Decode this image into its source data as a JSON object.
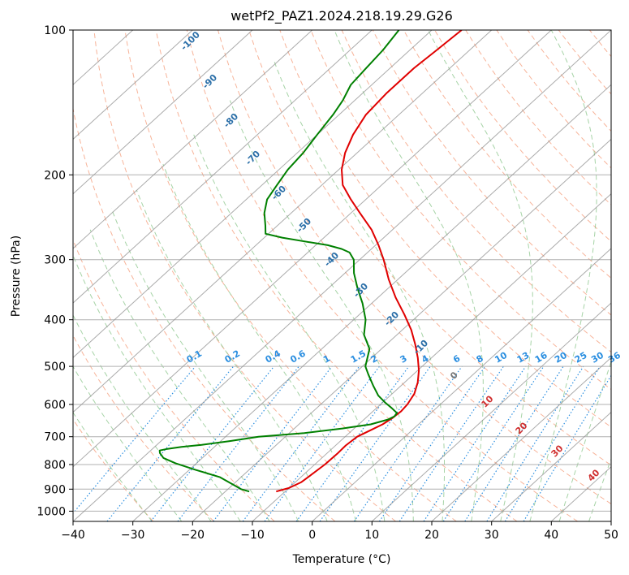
{
  "chart_data": {
    "type": "line",
    "subtype": "skew-t log-p diagram",
    "title": "wetPf2_PAZ1.2024.218.19.29.G26",
    "xlabel": "Temperature (°C)",
    "ylabel": "Pressure (hPa)",
    "xlim": [
      -40,
      50
    ],
    "ylim": [
      1050,
      100
    ],
    "y_scale": "log",
    "grid": true,
    "x_ticks": [
      "−40",
      "−30",
      "−20",
      "−10",
      "0",
      "10",
      "20",
      "30",
      "40",
      "50"
    ],
    "x_tick_values": [
      -40,
      -30,
      -20,
      -10,
      0,
      10,
      20,
      30,
      40,
      50
    ],
    "y_ticks": [
      "100",
      "200",
      "300",
      "400",
      "500",
      "600",
      "700",
      "800",
      "900",
      "1000"
    ],
    "y_tick_values": [
      100,
      200,
      300,
      400,
      500,
      600,
      700,
      800,
      900,
      1000
    ],
    "series": [
      {
        "color": "#e00000",
        "pressure": [
          910,
          895,
          870,
          840,
          800,
          760,
          730,
          700,
          680,
          660,
          640,
          620,
          600,
          570,
          540,
          510,
          480,
          450,
          420,
          390,
          360,
          330,
          300,
          280,
          260,
          240,
          225,
          210,
          195,
          180,
          165,
          150,
          135,
          120,
          110,
          100
        ],
        "temperature": [
          -11.5,
          -10.0,
          -9.0,
          -8.7,
          -8.3,
          -8.2,
          -8.3,
          -8.0,
          -7.0,
          -6.0,
          -5.5,
          -5.3,
          -5.5,
          -6.3,
          -7.8,
          -9.8,
          -12.3,
          -15.2,
          -18.5,
          -22.5,
          -27.0,
          -31.5,
          -36.0,
          -39.5,
          -43.5,
          -48.5,
          -52.5,
          -56.5,
          -59.5,
          -62.0,
          -64.0,
          -65.5,
          -66.0,
          -66.0,
          -65.5,
          -65.0
        ]
      },
      {
        "color": "#008000",
        "pressure": [
          910,
          900,
          880,
          850,
          820,
          795,
          775,
          757,
          748,
          742,
          735,
          728,
          715,
          700,
          688,
          673,
          660,
          645,
          635,
          625,
          610,
          595,
          575,
          550,
          520,
          500,
          460,
          430,
          400,
          370,
          345,
          320,
          300,
          290,
          285,
          280,
          275,
          270,
          265,
          255,
          240,
          225,
          210,
          195,
          180,
          165,
          150,
          140,
          130,
          120,
          110,
          100
        ],
        "temperature": [
          -16.0,
          -17.8,
          -20.0,
          -23.5,
          -29.0,
          -33.5,
          -36.5,
          -38.0,
          -38.5,
          -37.5,
          -35.5,
          -32.5,
          -28.5,
          -24.5,
          -17.5,
          -12.0,
          -8.0,
          -6.0,
          -5.5,
          -5.7,
          -7.5,
          -9.5,
          -12.0,
          -14.5,
          -17.5,
          -19.5,
          -22.0,
          -25.5,
          -28.0,
          -31.5,
          -35.0,
          -38.5,
          -41.0,
          -43.0,
          -45.0,
          -48.0,
          -52.5,
          -57.0,
          -60.5,
          -62.0,
          -64.5,
          -66.5,
          -67.5,
          -68.5,
          -69.0,
          -70.0,
          -71.0,
          -72.0,
          -73.5,
          -74.0,
          -74.5,
          -75.5
        ]
      }
    ],
    "isotherms": {
      "label_values": [
        "-100",
        "-90",
        "-80",
        "-70",
        "-60",
        "-50",
        "-40",
        "-30",
        "-20",
        "-10",
        "0",
        "10",
        "20",
        "30",
        "40"
      ]
    },
    "mixing_ratios": {
      "labels": [
        "0.1",
        "0.2",
        "0.4",
        "0.6",
        "1",
        "1.5",
        "2",
        "3",
        "4",
        "6",
        "8",
        "10",
        "13",
        "16",
        "20",
        "25",
        "30",
        "36"
      ]
    },
    "colors": {
      "isotherm_cold": "#2b6fa8",
      "isotherm_warm": "#d03030",
      "isotherm_zero": "#777777",
      "mixing_ratio": "#2a8ee0",
      "dry_adiabat": "#f5a080",
      "moist_adiabat": "#90c890",
      "skewed_isotherm": "#909090",
      "grid": "#b0b0b0"
    }
  }
}
